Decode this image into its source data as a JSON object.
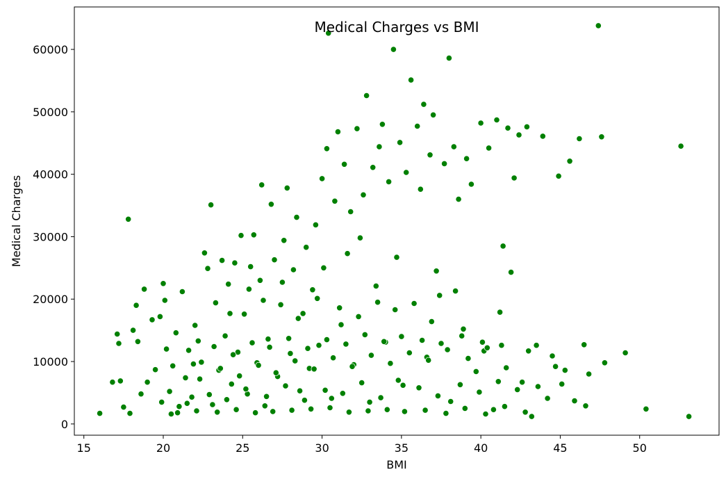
{
  "chart_data": {
    "type": "scatter",
    "title": "Medical Charges vs BMI",
    "xlabel": "BMI",
    "ylabel": "Medical Charges",
    "xlim": [
      14.4,
      55.0
    ],
    "ylim": [
      -1800,
      66800
    ],
    "xticks": [
      15,
      20,
      25,
      30,
      35,
      40,
      45,
      50
    ],
    "yticks": [
      0,
      10000,
      20000,
      30000,
      40000,
      50000,
      60000
    ],
    "grid": false,
    "legend": "none",
    "marker_color": "#008000",
    "marker_edge_color": "#ffffff",
    "points": [
      [
        16.0,
        1700
      ],
      [
        16.8,
        6700
      ],
      [
        17.1,
        14400
      ],
      [
        17.2,
        12900
      ],
      [
        17.3,
        6900
      ],
      [
        17.5,
        2700
      ],
      [
        17.8,
        32800
      ],
      [
        17.9,
        1700
      ],
      [
        18.1,
        15000
      ],
      [
        18.3,
        19000
      ],
      [
        18.4,
        13200
      ],
      [
        18.6,
        4800
      ],
      [
        18.8,
        21600
      ],
      [
        19.0,
        6700
      ],
      [
        19.3,
        16700
      ],
      [
        19.5,
        8700
      ],
      [
        19.8,
        17200
      ],
      [
        20.0,
        22500
      ],
      [
        20.1,
        19800
      ],
      [
        20.2,
        12000
      ],
      [
        20.4,
        5200
      ],
      [
        20.6,
        9300
      ],
      [
        20.8,
        14600
      ],
      [
        21.0,
        2800
      ],
      [
        21.2,
        21200
      ],
      [
        21.4,
        7400
      ],
      [
        21.6,
        11800
      ],
      [
        21.8,
        4300
      ],
      [
        22.0,
        15800
      ],
      [
        22.2,
        13300
      ],
      [
        22.4,
        9900
      ],
      [
        22.6,
        27400
      ],
      [
        22.8,
        24900
      ],
      [
        23.0,
        35100
      ],
      [
        23.1,
        3100
      ],
      [
        23.3,
        19400
      ],
      [
        23.5,
        8600
      ],
      [
        23.7,
        26200
      ],
      [
        23.9,
        14100
      ],
      [
        24.1,
        22400
      ],
      [
        24.3,
        6400
      ],
      [
        24.5,
        25800
      ],
      [
        24.7,
        11500
      ],
      [
        24.9,
        30200
      ],
      [
        25.1,
        17600
      ],
      [
        25.3,
        4800
      ],
      [
        25.5,
        25200
      ],
      [
        25.7,
        30300
      ],
      [
        25.9,
        9800
      ],
      [
        26.1,
        23000
      ],
      [
        26.2,
        38300
      ],
      [
        26.4,
        2900
      ],
      [
        26.6,
        13600
      ],
      [
        26.8,
        35200
      ],
      [
        27.0,
        26300
      ],
      [
        27.2,
        7600
      ],
      [
        27.4,
        19100
      ],
      [
        27.6,
        29400
      ],
      [
        27.8,
        37800
      ],
      [
        28.0,
        11300
      ],
      [
        28.2,
        24700
      ],
      [
        28.4,
        33100
      ],
      [
        28.6,
        5300
      ],
      [
        28.8,
        17700
      ],
      [
        29.0,
        28300
      ],
      [
        29.2,
        8900
      ],
      [
        29.4,
        21500
      ],
      [
        29.6,
        31900
      ],
      [
        29.8,
        12600
      ],
      [
        30.0,
        39300
      ],
      [
        30.1,
        25000
      ],
      [
        30.3,
        44100
      ],
      [
        30.4,
        62600
      ],
      [
        30.6,
        4100
      ],
      [
        30.8,
        35700
      ],
      [
        31.0,
        46800
      ],
      [
        31.2,
        15900
      ],
      [
        31.4,
        41600
      ],
      [
        31.6,
        27300
      ],
      [
        31.8,
        34000
      ],
      [
        32.0,
        9500
      ],
      [
        32.2,
        47300
      ],
      [
        32.4,
        29800
      ],
      [
        32.6,
        36700
      ],
      [
        32.8,
        52600
      ],
      [
        33.0,
        3500
      ],
      [
        33.2,
        41100
      ],
      [
        33.4,
        22100
      ],
      [
        33.6,
        44400
      ],
      [
        33.8,
        48000
      ],
      [
        34.0,
        13100
      ],
      [
        34.2,
        38800
      ],
      [
        34.5,
        60000
      ],
      [
        34.7,
        26700
      ],
      [
        34.9,
        45100
      ],
      [
        35.1,
        6200
      ],
      [
        35.3,
        40300
      ],
      [
        35.6,
        55100
      ],
      [
        35.8,
        19300
      ],
      [
        36.0,
        47700
      ],
      [
        36.2,
        37600
      ],
      [
        36.4,
        51200
      ],
      [
        36.6,
        10700
      ],
      [
        36.8,
        43100
      ],
      [
        37.0,
        49500
      ],
      [
        37.2,
        24500
      ],
      [
        37.4,
        20600
      ],
      [
        37.7,
        41700
      ],
      [
        38.0,
        58600
      ],
      [
        38.1,
        3600
      ],
      [
        38.3,
        44400
      ],
      [
        38.6,
        36000
      ],
      [
        38.9,
        15200
      ],
      [
        39.1,
        42500
      ],
      [
        39.4,
        38400
      ],
      [
        39.7,
        8400
      ],
      [
        40.0,
        48200
      ],
      [
        40.2,
        11700
      ],
      [
        40.5,
        44200
      ],
      [
        40.8,
        2300
      ],
      [
        41.0,
        48700
      ],
      [
        41.2,
        17900
      ],
      [
        41.4,
        28500
      ],
      [
        41.7,
        47400
      ],
      [
        41.9,
        24300
      ],
      [
        42.1,
        39400
      ],
      [
        42.4,
        46300
      ],
      [
        42.6,
        6700
      ],
      [
        42.9,
        47600
      ],
      [
        43.2,
        1200
      ],
      [
        43.5,
        12600
      ],
      [
        43.9,
        46100
      ],
      [
        44.2,
        4100
      ],
      [
        44.7,
        9200
      ],
      [
        44.9,
        39700
      ],
      [
        45.3,
        8600
      ],
      [
        45.6,
        42100
      ],
      [
        45.9,
        3700
      ],
      [
        46.2,
        45700
      ],
      [
        46.5,
        12700
      ],
      [
        46.8,
        8000
      ],
      [
        47.4,
        63800
      ],
      [
        47.6,
        46000
      ],
      [
        47.8,
        9800
      ],
      [
        49.1,
        11400
      ],
      [
        50.4,
        2400
      ],
      [
        52.6,
        44500
      ],
      [
        53.1,
        1200
      ],
      [
        22.1,
        2100
      ],
      [
        23.4,
        1900
      ],
      [
        24.6,
        2300
      ],
      [
        25.8,
        1800
      ],
      [
        26.9,
        2000
      ],
      [
        28.1,
        2200
      ],
      [
        29.3,
        2400
      ],
      [
        30.5,
        2600
      ],
      [
        31.7,
        1900
      ],
      [
        32.9,
        2100
      ],
      [
        34.1,
        2300
      ],
      [
        35.2,
        2000
      ],
      [
        36.5,
        2200
      ],
      [
        37.8,
        1700
      ],
      [
        39.0,
        2500
      ],
      [
        40.3,
        1600
      ],
      [
        41.5,
        2800
      ],
      [
        42.8,
        1900
      ],
      [
        21.5,
        3300
      ],
      [
        22.9,
        4700
      ],
      [
        24.0,
        3900
      ],
      [
        25.2,
        5600
      ],
      [
        26.5,
        4400
      ],
      [
        27.7,
        6100
      ],
      [
        28.9,
        3800
      ],
      [
        30.2,
        5400
      ],
      [
        31.3,
        4900
      ],
      [
        32.5,
        6600
      ],
      [
        33.7,
        4200
      ],
      [
        34.8,
        7000
      ],
      [
        36.1,
        5800
      ],
      [
        37.3,
        4500
      ],
      [
        38.7,
        6300
      ],
      [
        39.9,
        5100
      ],
      [
        41.1,
        6800
      ],
      [
        42.3,
        5500
      ],
      [
        22.3,
        7200
      ],
      [
        23.6,
        8900
      ],
      [
        24.8,
        7700
      ],
      [
        26.0,
        9400
      ],
      [
        27.1,
        8200
      ],
      [
        28.3,
        10100
      ],
      [
        29.5,
        8800
      ],
      [
        30.7,
        10600
      ],
      [
        31.9,
        9200
      ],
      [
        33.1,
        11000
      ],
      [
        34.3,
        9700
      ],
      [
        35.5,
        11400
      ],
      [
        36.7,
        10200
      ],
      [
        37.9,
        11900
      ],
      [
        39.2,
        10500
      ],
      [
        40.4,
        12200
      ],
      [
        41.6,
        9000
      ],
      [
        43.0,
        11700
      ],
      [
        23.2,
        12400
      ],
      [
        24.4,
        11100
      ],
      [
        25.6,
        13000
      ],
      [
        26.7,
        12300
      ],
      [
        27.9,
        13700
      ],
      [
        29.1,
        12100
      ],
      [
        30.3,
        13500
      ],
      [
        31.5,
        12800
      ],
      [
        32.7,
        14300
      ],
      [
        33.9,
        13200
      ],
      [
        35.0,
        14000
      ],
      [
        36.3,
        13400
      ],
      [
        37.5,
        12900
      ],
      [
        38.8,
        14100
      ],
      [
        40.1,
        13100
      ],
      [
        41.3,
        12600
      ],
      [
        20.9,
        1800
      ],
      [
        21.9,
        9600
      ],
      [
        24.2,
        17700
      ],
      [
        25.4,
        21600
      ],
      [
        26.3,
        19800
      ],
      [
        27.5,
        22700
      ],
      [
        28.5,
        16900
      ],
      [
        29.7,
        20100
      ],
      [
        31.1,
        18600
      ],
      [
        32.3,
        17200
      ],
      [
        33.5,
        19500
      ],
      [
        34.6,
        18300
      ],
      [
        36.9,
        16400
      ],
      [
        38.4,
        21300
      ],
      [
        19.9,
        3500
      ],
      [
        20.5,
        1600
      ],
      [
        43.6,
        6000
      ],
      [
        44.5,
        10900
      ],
      [
        45.1,
        6400
      ],
      [
        46.6,
        2900
      ]
    ]
  }
}
